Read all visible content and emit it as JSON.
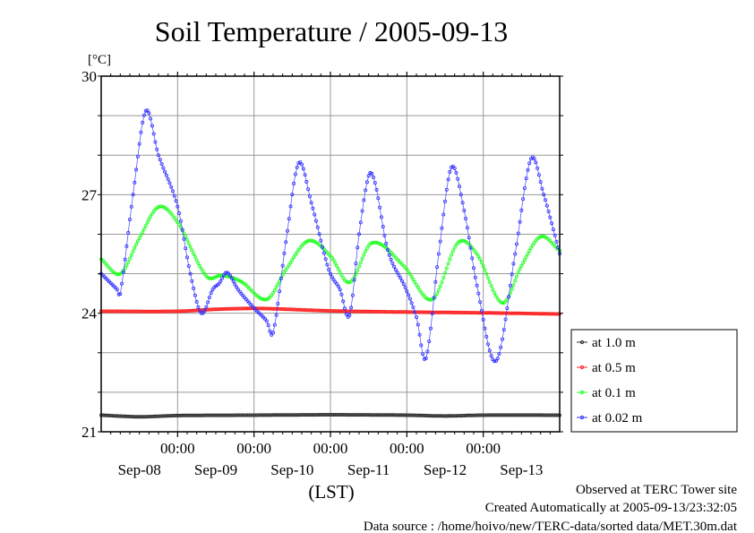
{
  "chart_data": {
    "type": "line",
    "title": "Soil Temperature / 2005-09-13",
    "ylabel": "[°C]",
    "xlabel": "(LST)",
    "ylim": [
      21,
      30
    ],
    "yticks": [
      21,
      24,
      27,
      30
    ],
    "ygrid_step": 1,
    "x_units": "hours since Sep-08 00:00 (LST)",
    "xlim": [
      0,
      144
    ],
    "x_midnight_ticks": [
      24,
      48,
      72,
      96,
      120
    ],
    "x_midnight_label": "00:00",
    "x_day_labels": [
      "Sep-08",
      "Sep-09",
      "Sep-10",
      "Sep-11",
      "Sep-12",
      "Sep-13"
    ],
    "grid": true,
    "legend_position": "right",
    "series": [
      {
        "name": "at 1.0 m",
        "color": "#303030",
        "points": [
          [
            0,
            21.42
          ],
          [
            12,
            21.38
          ],
          [
            24,
            21.41
          ],
          [
            48,
            21.42
          ],
          [
            72,
            21.43
          ],
          [
            96,
            21.42
          ],
          [
            108,
            21.4
          ],
          [
            120,
            21.42
          ],
          [
            144,
            21.42
          ]
        ]
      },
      {
        "name": "at 0.5 m",
        "color": "#ff2020",
        "points": [
          [
            0,
            24.05
          ],
          [
            24,
            24.05
          ],
          [
            36,
            24.1
          ],
          [
            50,
            24.12
          ],
          [
            72,
            24.06
          ],
          [
            96,
            24.03
          ],
          [
            120,
            24.01
          ],
          [
            144,
            23.98
          ]
        ]
      },
      {
        "name": "at 0.1 m",
        "color": "#20ff20",
        "points": [
          [
            0,
            25.37
          ],
          [
            6,
            25.0
          ],
          [
            12,
            25.9
          ],
          [
            18,
            26.69
          ],
          [
            24,
            26.3
          ],
          [
            33,
            24.94
          ],
          [
            38,
            24.96
          ],
          [
            44,
            24.8
          ],
          [
            52,
            24.35
          ],
          [
            58,
            25.1
          ],
          [
            65,
            25.83
          ],
          [
            72,
            25.45
          ],
          [
            78,
            24.78
          ],
          [
            85,
            25.78
          ],
          [
            95,
            25.2
          ],
          [
            104,
            24.35
          ],
          [
            112,
            25.78
          ],
          [
            118,
            25.5
          ],
          [
            126,
            24.26
          ],
          [
            132,
            25.2
          ],
          [
            138,
            25.94
          ],
          [
            144,
            25.58
          ]
        ]
      },
      {
        "name": "at 0.02 m",
        "color": "#3030ff",
        "points": [
          [
            0,
            25.0
          ],
          [
            5,
            24.6
          ],
          [
            6,
            24.49
          ],
          [
            10,
            27.0
          ],
          [
            14,
            29.12
          ],
          [
            18,
            28.0
          ],
          [
            24,
            26.7
          ],
          [
            28,
            25.0
          ],
          [
            31.5,
            24.0
          ],
          [
            35,
            24.6
          ],
          [
            37,
            24.75
          ],
          [
            39.5,
            25.03
          ],
          [
            43,
            24.6
          ],
          [
            48,
            24.13
          ],
          [
            52,
            23.8
          ],
          [
            54,
            23.51
          ],
          [
            58,
            25.8
          ],
          [
            62,
            27.8
          ],
          [
            66,
            26.8
          ],
          [
            71.5,
            25.1
          ],
          [
            75,
            24.6
          ],
          [
            78,
            23.95
          ],
          [
            81,
            26.0
          ],
          [
            84,
            27.48
          ],
          [
            86,
            27.3
          ],
          [
            90,
            25.6
          ],
          [
            95.5,
            24.65
          ],
          [
            99,
            23.9
          ],
          [
            102,
            22.86
          ],
          [
            106,
            25.5
          ],
          [
            110,
            27.69
          ],
          [
            114,
            26.6
          ],
          [
            118,
            24.7
          ],
          [
            124,
            22.79
          ],
          [
            130,
            25.5
          ],
          [
            135,
            27.91
          ],
          [
            139,
            27.0
          ],
          [
            144,
            25.51
          ]
        ]
      }
    ]
  },
  "footer": {
    "observed": "Observed at TERC Tower site",
    "created": "Created Automatically at 2005-09-13/23:32:05",
    "source": "Data source : /home/hoivo/new/TERC-data/sorted  data/MET.30m.dat"
  }
}
